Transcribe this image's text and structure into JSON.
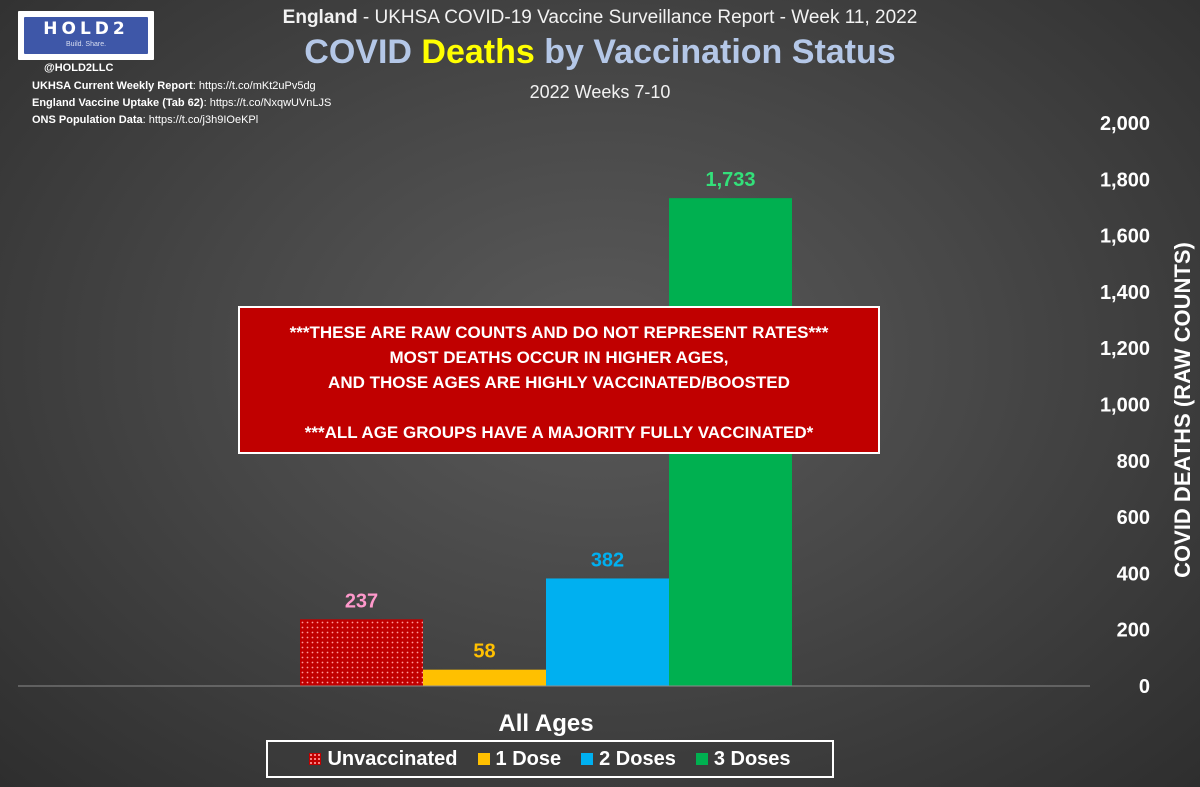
{
  "branding": {
    "logo_word": "HOLD2",
    "logo_tagline": "Build. Share.",
    "handle": "@HOLD2LLC",
    "sources": [
      {
        "label": "UKHSA Current Weekly Report",
        "url": "https://t.co/mKt2uPv5dg"
      },
      {
        "label": "England Vaccine Uptake (Tab 62)",
        "url": "https://t.co/NxqwUVnLJS"
      },
      {
        "label": "ONS Population Data",
        "url": "https://t.co/j3h9IOeKPl"
      }
    ]
  },
  "header": {
    "supertitle_bold": "England",
    "supertitle_rest": " - UKHSA COVID-19 Vaccine Surveillance Report - Week 11, 2022",
    "title_part1": "COVID ",
    "title_highlight": "Deaths",
    "title_part2": " by Vaccination Status",
    "subtitle": "2022 Weeks 7-10"
  },
  "banner": {
    "lines": [
      "***THESE ARE RAW COUNTS AND DO NOT REPRESENT RATES***",
      "MOST DEATHS OCCUR IN HIGHER AGES,",
      "AND THOSE AGES ARE HIGHLY VACCINATED/BOOSTED",
      "",
      "***ALL AGE GROUPS HAVE A MAJORITY FULLY VACCINATED*"
    ],
    "color": "#c00000"
  },
  "chart_data": {
    "type": "bar",
    "categories": [
      "All Ages"
    ],
    "series": [
      {
        "name": "Unvaccinated",
        "values": [
          237
        ],
        "color": "#c00000",
        "label_color": "#ff99cc",
        "pattern": "dotted"
      },
      {
        "name": "1 Dose",
        "values": [
          58
        ],
        "color": "#ffc000",
        "label_color": "#ffc000"
      },
      {
        "name": "2 Doses",
        "values": [
          382
        ],
        "color": "#00b0f0",
        "label_color": "#00b0f0"
      },
      {
        "name": "3 Doses",
        "values": [
          1733
        ],
        "color": "#00b050",
        "label_color": "#33e07a"
      }
    ],
    "data_labels": [
      "237",
      "58",
      "382",
      "1,733"
    ],
    "ylabel": "COVID DEATHS (RAW COUNTS)",
    "ylim": [
      0,
      2000
    ],
    "y_ticks": [
      0,
      200,
      400,
      600,
      800,
      1000,
      1200,
      1400,
      1600,
      1800,
      2000
    ],
    "y_tick_labels": [
      "0",
      "200",
      "400",
      "600",
      "800",
      "1,000",
      "1,200",
      "1,400",
      "1,600",
      "1,800",
      "2,000"
    ],
    "y_axis_position": "right",
    "grid": false,
    "legend_position": "bottom"
  }
}
